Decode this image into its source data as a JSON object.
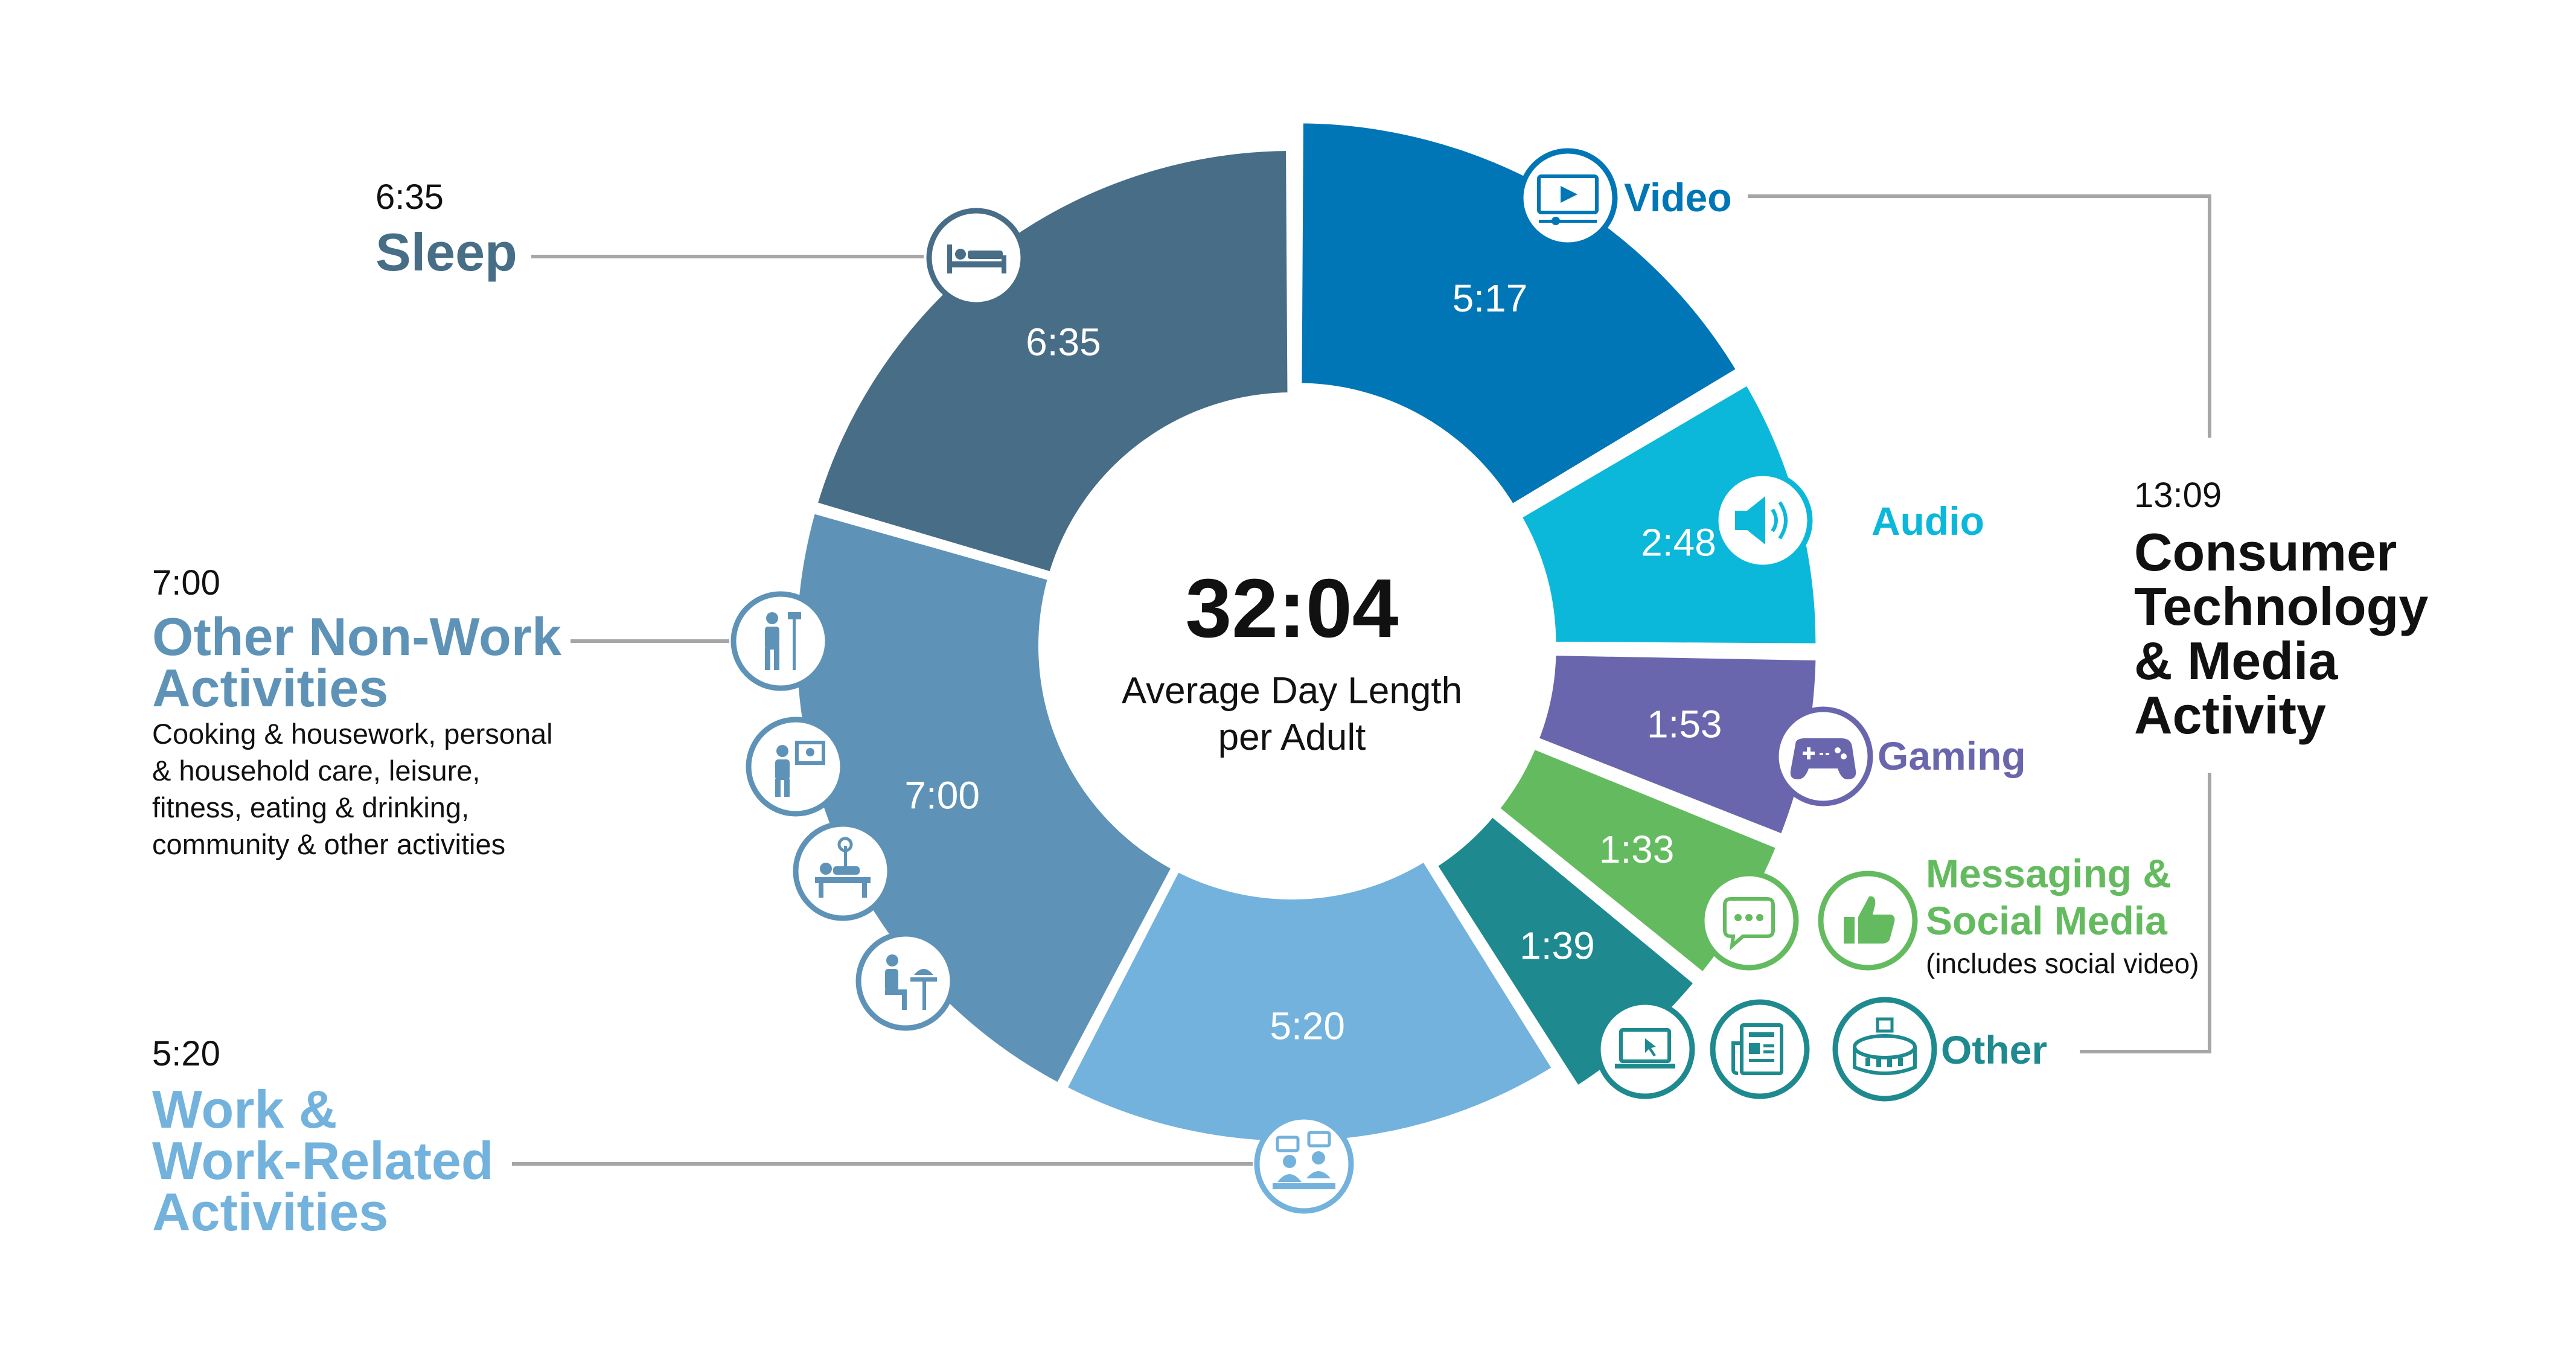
{
  "center": {
    "total": "32:04",
    "line1": "Average Day Length",
    "line2": "per Adult"
  },
  "colors": {
    "video": "#0076b6",
    "audio": "#0cb8d9",
    "gaming": "#6966ad",
    "messaging": "#64bb5f",
    "other": "#1e8a8f",
    "work": "#72b2dc",
    "nonwork": "#5e93b7",
    "sleep": "#476d87",
    "line": "#a6a6a6"
  },
  "chart_data": {
    "type": "pie",
    "donut": true,
    "center_value": "32:04",
    "center_label": "Average Day Length per Adult",
    "slices": [
      {
        "name": "Video",
        "value": "5:17",
        "minutes": 317,
        "color": "#0076b6",
        "icon": "video-player-icon"
      },
      {
        "name": "Audio",
        "value": "2:48",
        "minutes": 168,
        "color": "#0cb8d9",
        "icon": "speaker-icon"
      },
      {
        "name": "Gaming",
        "value": "1:53",
        "minutes": 113,
        "color": "#6966ad",
        "icon": "gamepad-icon"
      },
      {
        "name": "Messaging & Social Media",
        "value": "1:33",
        "minutes": 93,
        "color": "#64bb5f",
        "icon": "thumbs-up-icon"
      },
      {
        "name": "Other",
        "value": "1:39",
        "minutes": 99,
        "color": "#1e8a8f",
        "icon": "laptop-icon"
      },
      {
        "name": "Work & Work-Related Activities",
        "value": "5:20",
        "minutes": 320,
        "color": "#72b2dc",
        "icon": "meeting-icon"
      },
      {
        "name": "Other Non-Work Activities",
        "value": "7:00",
        "minutes": 420,
        "color": "#5e93b7",
        "icon": "person-broom-icon"
      },
      {
        "name": "Sleep",
        "value": "6:35",
        "minutes": 395,
        "color": "#476d87",
        "icon": "bed-icon"
      }
    ],
    "groups": [
      {
        "name": "Consumer Technology & Media Activity",
        "value": "13:09",
        "members": [
          "Video",
          "Audio",
          "Gaming",
          "Messaging & Social Media",
          "Other"
        ]
      }
    ]
  },
  "labels": {
    "sleep": {
      "time": "6:35",
      "title": "Sleep"
    },
    "nonwork": {
      "time": "7:00",
      "title1": "Other Non-Work",
      "title2": "Activities",
      "desc1": "Cooking & housework, personal",
      "desc2": "& household care, leisure,",
      "desc3": "fitness, eating & drinking,",
      "desc4": "community & other activities"
    },
    "work": {
      "time": "5:20",
      "title1": "Work &",
      "title2": "Work-Related",
      "title3": "Activities"
    },
    "media": {
      "time": "13:09",
      "title1": "Consumer",
      "title2": "Technology",
      "title3": "& Media",
      "title4": "Activity"
    },
    "video": "Video",
    "audio": "Audio",
    "gaming": "Gaming",
    "messaging1": "Messaging &",
    "messaging2": "Social Media",
    "messaging3": "(includes social video)",
    "other": "Other"
  }
}
